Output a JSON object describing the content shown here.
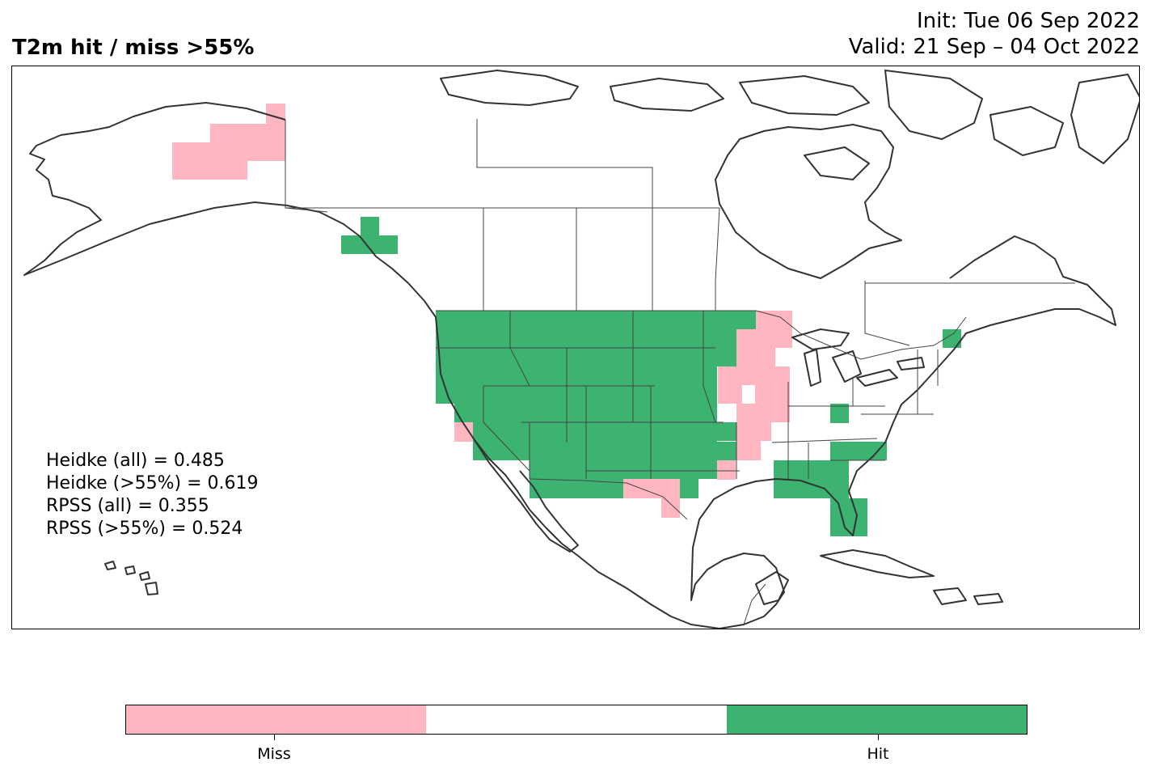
{
  "title": "T2m hit / miss  >55%",
  "init_line": "Init: Tue 06 Sep 2022",
  "valid_line": "Valid: 21 Sep – 04 Oct 2022",
  "stats": [
    "Heidke (all) = 0.485",
    "Heidke (>55%) = 0.619",
    "RPSS (all) = 0.355",
    "RPSS (>55%) = 0.524"
  ],
  "colors": {
    "miss": "#ffb6c1",
    "neutral": "#ffffff",
    "hit": "#3cb371",
    "coast": "#333333",
    "border": "#444444"
  },
  "legend": {
    "miss_label": "Miss",
    "hit_label": "Hit"
  },
  "map_region": "North America"
}
